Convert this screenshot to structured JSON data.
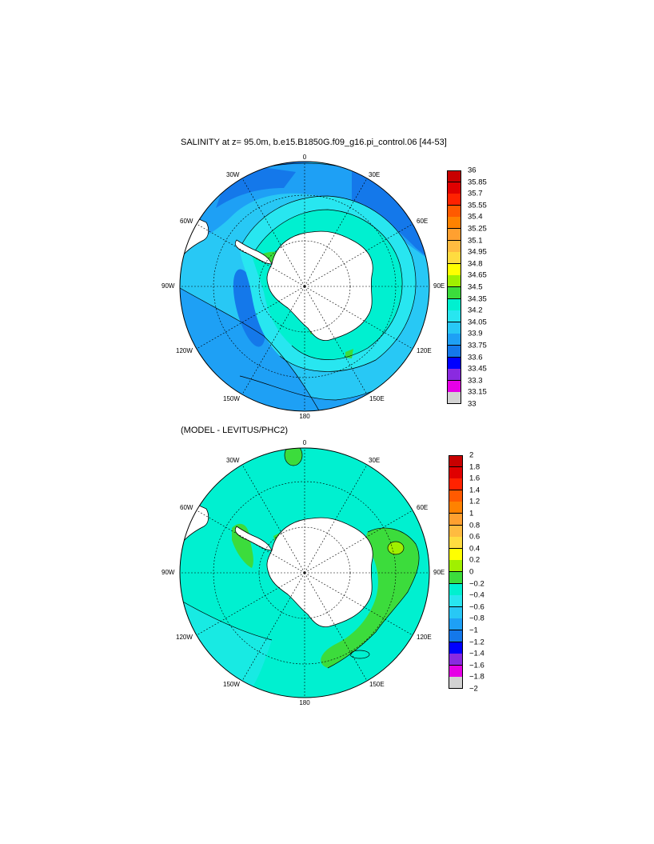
{
  "plot1": {
    "title": "SALINITY at z=  95.0m, b.e15.B1850G.f09_g16.pi_control.06 [44-53]",
    "lon_labels": {
      "top": "0",
      "tl": "30W",
      "tr": "30E",
      "ul": "60W",
      "ur": "60E",
      "left": "90W",
      "right": "90E",
      "ll": "120W",
      "lr": "120E",
      "bl": "150W",
      "br": "150E",
      "bottom": "180"
    },
    "colorbar": {
      "labels": [
        "36",
        "35.85",
        "35.7",
        "35.55",
        "35.4",
        "35.25",
        "35.1",
        "34.95",
        "34.8",
        "34.65",
        "34.5",
        "34.35",
        "34.2",
        "34.05",
        "33.9",
        "33.75",
        "33.6",
        "33.45",
        "33.3",
        "33.15",
        "33"
      ],
      "colors": [
        "#c80000",
        "#e00000",
        "#ff2200",
        "#ff5a00",
        "#ff8200",
        "#ffa030",
        "#ffbb40",
        "#ffdc40",
        "#ffff00",
        "#a0f000",
        "#3cdc3c",
        "#00f0d0",
        "#28e6f0",
        "#28c8f5",
        "#1ea0f5",
        "#1478ea",
        "#0000ff",
        "#8a2ae0",
        "#e600e6",
        "#d2d2d2"
      ]
    }
  },
  "plot2": {
    "title": "(MODEL - LEVITUS/PHC2)",
    "lon_labels": {
      "top": "0",
      "tl": "30W",
      "tr": "30E",
      "ul": "60W",
      "ur": "60E",
      "left": "90W",
      "right": "90E",
      "ll": "120W",
      "lr": "120E",
      "bl": "150W",
      "br": "150E",
      "bottom": "180"
    },
    "colorbar": {
      "labels": [
        "2",
        "1.8",
        "1.6",
        "1.4",
        "1.2",
        "1",
        "0.8",
        "0.6",
        "0.4",
        "0.2",
        "0",
        "−0.2",
        "−0.4",
        "−0.6",
        "−0.8",
        "−1",
        "−1.2",
        "−1.4",
        "−1.6",
        "−1.8",
        "−2"
      ],
      "colors": [
        "#c80000",
        "#e00000",
        "#ff2200",
        "#ff5a00",
        "#ff8200",
        "#ffa030",
        "#ffbb40",
        "#ffdc40",
        "#ffff00",
        "#a0f000",
        "#3cdc3c",
        "#00f0d0",
        "#28e6f0",
        "#28c8f5",
        "#1ea0f5",
        "#1478ea",
        "#0000ff",
        "#8a2ae0",
        "#e600e6",
        "#d2d2d2"
      ]
    }
  }
}
